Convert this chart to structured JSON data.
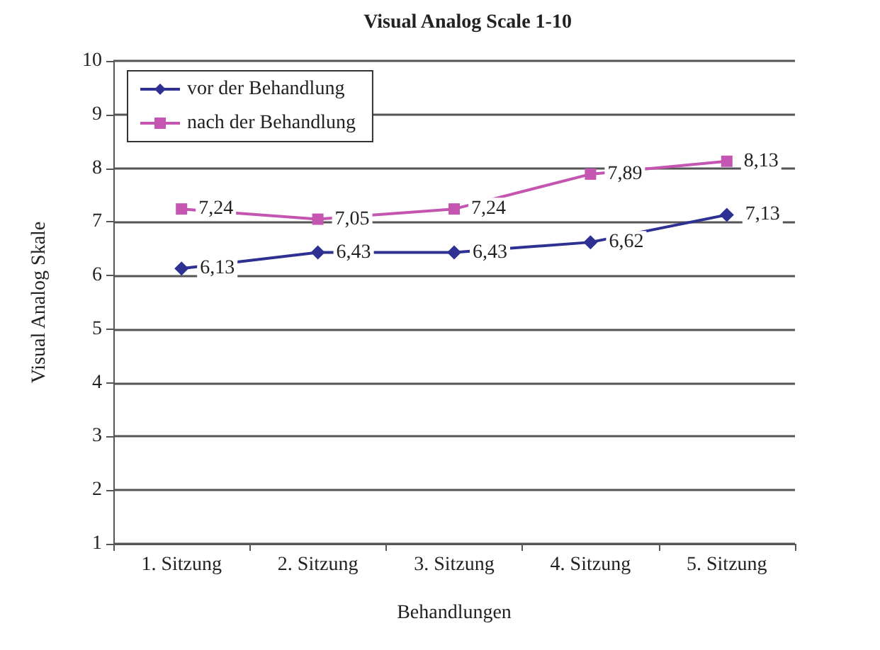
{
  "chart_data": {
    "type": "line",
    "title": "Visual Analog Scale 1-10",
    "xlabel": "Behandlungen",
    "ylabel": "Visual Analog Skale",
    "categories": [
      "1. Sitzung",
      "2. Sitzung",
      "3. Sitzung",
      "4. Sitzung",
      "5. Sitzung"
    ],
    "series": [
      {
        "name": "vor der Behandlung",
        "color": "#2e3192",
        "marker": "diamond",
        "values": [
          6.13,
          6.43,
          6.43,
          6.62,
          7.13
        ],
        "value_labels": [
          "6,13",
          "6,43",
          "6,43",
          "6,62",
          "7,13"
        ]
      },
      {
        "name": "nach der Behandlung",
        "color": "#c455b0",
        "marker": "square",
        "values": [
          7.24,
          7.05,
          7.24,
          7.89,
          8.13
        ],
        "value_labels": [
          "7,24",
          "7,05",
          "7,24",
          "7,89",
          "8,13"
        ]
      }
    ],
    "ylim": [
      1,
      10
    ],
    "yticks": [
      1,
      2,
      3,
      4,
      5,
      6,
      7,
      8,
      9,
      10
    ],
    "grid": "y",
    "legend": "top left"
  }
}
